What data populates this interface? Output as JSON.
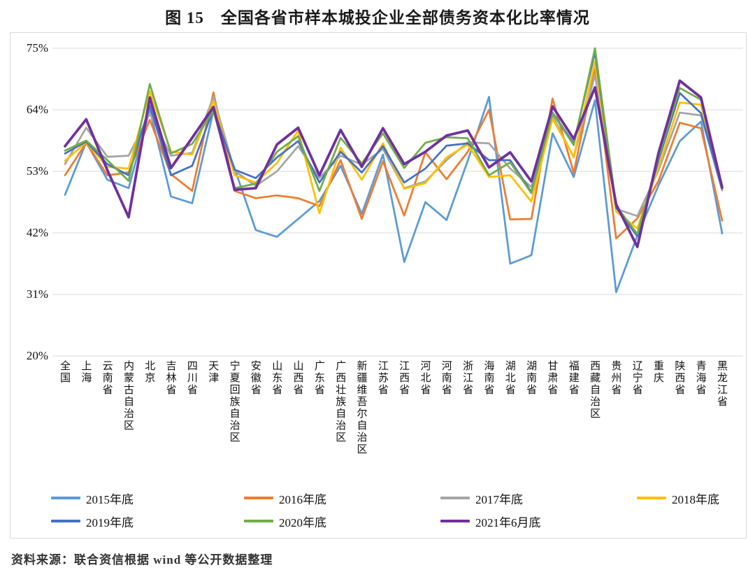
{
  "title": "图 15　全国各省市样本城投企业全部债务资本化比率情况",
  "source": "资料来源：联合资信根据 wind 等公开数据整理",
  "chart_data": {
    "type": "line",
    "title": "图 15 全国各省市样本城投企业全部债务资本化比率情况",
    "xlabel": "",
    "ylabel": "",
    "ylim": [
      20,
      75
    ],
    "grid": true,
    "legend_position": "bottom",
    "y_ticks": [
      {
        "label": "75%",
        "value": 75
      },
      {
        "label": "64%",
        "value": 64
      },
      {
        "label": "53%",
        "value": 53
      },
      {
        "label": "42%",
        "value": 42
      },
      {
        "label": "31%",
        "value": 31
      },
      {
        "label": "20%",
        "value": 20
      }
    ],
    "categories": [
      "全国",
      "上海",
      "云南省",
      "内蒙古自治区",
      "北京",
      "吉林省",
      "四川省",
      "天津",
      "宁夏回族自治区",
      "安徽省",
      "山东省",
      "山西省",
      "广东省",
      "广西壮族自治区",
      "新疆维吾尔自治区",
      "江苏省",
      "江西省",
      "河北省",
      "河南省",
      "浙江省",
      "海南省",
      "湖北省",
      "湖南省",
      "甘肃省",
      "福建省",
      "西藏自治区",
      "贵州省",
      "辽宁省",
      "重庆",
      "陕西省",
      "青海省",
      "黑龙江省"
    ],
    "series": [
      {
        "name": "2015年底",
        "color": "#5B9BD5",
        "values": [
          48.8,
          58.2,
          51.5,
          50.0,
          64.0,
          48.5,
          47.3,
          63.8,
          53.5,
          42.5,
          41.3,
          44.5,
          47.7,
          54.0,
          45.4,
          56.0,
          36.8,
          47.5,
          44.3,
          54.9,
          66.3,
          36.5,
          38.0,
          59.8,
          52.0,
          65.7,
          31.4,
          41.5,
          50.5,
          58.4,
          61.9,
          41.9
        ]
      },
      {
        "name": "2016年底",
        "color": "#ED7D31",
        "values": [
          52.3,
          58.1,
          52.3,
          52.8,
          62.2,
          52.5,
          49.5,
          67.1,
          49.5,
          48.2,
          48.7,
          48.2,
          46.8,
          55.0,
          44.5,
          54.8,
          45.1,
          56.4,
          51.6,
          56.5,
          64.0,
          44.4,
          44.5,
          66.0,
          52.7,
          71.3,
          41.0,
          44.6,
          51.3,
          61.7,
          60.7,
          44.2
        ]
      },
      {
        "name": "2017年底",
        "color": "#A5A5A5",
        "values": [
          54.3,
          60.8,
          55.6,
          55.8,
          63.3,
          55.8,
          56.3,
          66.3,
          53.1,
          50.4,
          53.0,
          57.5,
          51.8,
          55.8,
          54.2,
          57.0,
          50.0,
          51.2,
          55.0,
          58.2,
          58.0,
          53.5,
          50.2,
          62.9,
          55.5,
          70.3,
          46.3,
          45.0,
          53.2,
          63.5,
          63.0,
          49.6
        ]
      },
      {
        "name": "2018年底",
        "color": "#FFC000",
        "values": [
          54.9,
          58.2,
          53.8,
          53.5,
          67.3,
          56.5,
          56.0,
          65.6,
          52.3,
          51.0,
          54.5,
          60.3,
          45.5,
          57.2,
          51.5,
          58.0,
          49.9,
          50.9,
          55.5,
          57.8,
          52.0,
          52.3,
          47.6,
          62.4,
          55.6,
          72.6,
          45.8,
          42.8,
          53.8,
          65.3,
          64.9,
          50.4
        ]
      },
      {
        "name": "2019年底",
        "color": "#4472C4",
        "values": [
          56.2,
          58.3,
          54.3,
          52.3,
          64.8,
          52.3,
          54.0,
          64.1,
          53.3,
          51.8,
          55.5,
          58.4,
          51.0,
          56.5,
          52.8,
          57.5,
          51.0,
          53.5,
          57.6,
          58.0,
          55.0,
          55.0,
          49.3,
          63.5,
          58.0,
          74.3,
          46.5,
          41.4,
          55.0,
          67.0,
          63.4,
          49.9
        ]
      },
      {
        "name": "2020年底",
        "color": "#70AD47",
        "values": [
          56.7,
          58.5,
          55.0,
          51.3,
          68.6,
          56.2,
          57.9,
          63.9,
          50.0,
          50.8,
          56.5,
          59.3,
          49.5,
          59.0,
          54.4,
          59.8,
          53.6,
          58.1,
          59.1,
          58.9,
          52.3,
          54.6,
          49.1,
          63.4,
          57.7,
          75.0,
          46.8,
          41.8,
          55.5,
          67.9,
          65.8,
          50.0
        ]
      },
      {
        "name": "2021年6月底",
        "color": "#7030A0",
        "values": [
          57.5,
          62.3,
          53.2,
          44.8,
          66.2,
          53.6,
          59.0,
          64.5,
          49.7,
          50.0,
          57.8,
          60.8,
          52.3,
          60.4,
          53.8,
          60.7,
          54.3,
          56.5,
          59.4,
          60.3,
          53.7,
          56.4,
          51.2,
          64.6,
          58.8,
          68.0,
          47.1,
          39.5,
          56.3,
          69.2,
          66.2,
          50.1
        ]
      }
    ]
  }
}
